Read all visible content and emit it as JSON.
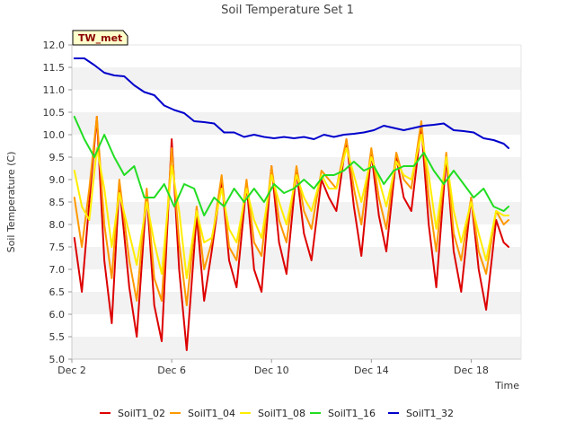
{
  "chart_data": {
    "type": "line",
    "title": "Soil Temperature Set 1",
    "xlabel": "Time",
    "ylabel": "Soil Temperature (C)",
    "station_badge": "TW_met",
    "xlim": [
      "2023-12-02",
      "2023-12-20"
    ],
    "ylim": [
      5.0,
      12.0
    ],
    "y_ticks": [
      "5.0",
      "5.5",
      "6.0",
      "6.5",
      "7.0",
      "7.5",
      "8.0",
      "8.5",
      "9.0",
      "9.5",
      "10.0",
      "10.5",
      "11.0",
      "11.5",
      "12.0"
    ],
    "x_ticks": [
      "Dec 2",
      "Dec 6",
      "Dec 10",
      "Dec 14",
      "Dec 18"
    ],
    "grid": "horizontal bands",
    "legend_position": "bottom",
    "series": [
      {
        "name": "SoilT1_02",
        "color": "#dd0000",
        "x": [
          2.1,
          2.4,
          2.7,
          3.0,
          3.3,
          3.6,
          3.9,
          4.3,
          4.6,
          5.0,
          5.3,
          5.6,
          6.0,
          6.3,
          6.6,
          7.0,
          7.3,
          7.6,
          8.0,
          8.3,
          8.6,
          9.0,
          9.3,
          9.6,
          10.0,
          10.3,
          10.6,
          11.0,
          11.3,
          11.6,
          12.0,
          12.3,
          12.6,
          13.0,
          13.3,
          13.6,
          14.0,
          14.3,
          14.6,
          15.0,
          15.3,
          15.6,
          16.0,
          16.3,
          16.6,
          17.0,
          17.3,
          17.6,
          18.0,
          18.3,
          18.6,
          19.0,
          19.3,
          19.5
        ],
        "values": [
          7.7,
          6.5,
          8.5,
          10.4,
          7.2,
          5.8,
          8.9,
          6.6,
          5.5,
          8.7,
          6.2,
          5.4,
          9.9,
          7.0,
          5.2,
          8.2,
          6.3,
          7.4,
          9.0,
          7.2,
          6.6,
          8.9,
          7.0,
          6.5,
          9.3,
          7.6,
          6.9,
          9.2,
          7.8,
          7.2,
          9.0,
          8.6,
          8.3,
          9.9,
          8.4,
          7.3,
          9.6,
          8.2,
          7.4,
          9.5,
          8.6,
          8.3,
          10.2,
          8.0,
          6.6,
          9.5,
          7.4,
          6.5,
          8.6,
          7.0,
          6.1,
          8.1,
          7.6,
          7.5
        ]
      },
      {
        "name": "SoilT1_04",
        "color": "#ff9900",
        "x": [
          2.1,
          2.4,
          2.7,
          3.0,
          3.3,
          3.6,
          3.9,
          4.3,
          4.6,
          5.0,
          5.3,
          5.6,
          6.0,
          6.3,
          6.6,
          7.0,
          7.3,
          7.6,
          8.0,
          8.3,
          8.6,
          9.0,
          9.3,
          9.6,
          10.0,
          10.3,
          10.6,
          11.0,
          11.3,
          11.6,
          12.0,
          12.3,
          12.6,
          13.0,
          13.3,
          13.6,
          14.0,
          14.3,
          14.6,
          15.0,
          15.3,
          15.6,
          16.0,
          16.3,
          16.6,
          17.0,
          17.3,
          17.6,
          18.0,
          18.3,
          18.6,
          19.0,
          19.3,
          19.5
        ],
        "values": [
          8.6,
          7.5,
          8.8,
          10.4,
          8.0,
          6.8,
          9.0,
          7.2,
          6.3,
          8.8,
          6.8,
          6.3,
          9.7,
          7.6,
          6.2,
          8.4,
          7.0,
          7.6,
          9.1,
          7.5,
          7.2,
          9.0,
          7.6,
          7.3,
          9.3,
          8.1,
          7.6,
          9.3,
          8.3,
          7.9,
          9.2,
          9.0,
          8.8,
          9.9,
          8.8,
          8.0,
          9.7,
          8.6,
          7.9,
          9.6,
          9.0,
          8.8,
          10.3,
          8.6,
          7.4,
          9.6,
          7.8,
          7.2,
          8.6,
          7.4,
          6.9,
          8.3,
          8.0,
          8.1
        ]
      },
      {
        "name": "SoilT1_08",
        "color": "#ffee00",
        "x": [
          2.1,
          2.4,
          2.7,
          3.0,
          3.3,
          3.6,
          3.9,
          4.3,
          4.6,
          5.0,
          5.3,
          5.6,
          6.0,
          6.3,
          6.6,
          7.0,
          7.3,
          7.6,
          8.0,
          8.3,
          8.6,
          9.0,
          9.3,
          9.6,
          10.0,
          10.3,
          10.6,
          11.0,
          11.3,
          11.6,
          12.0,
          12.3,
          12.6,
          13.0,
          13.3,
          13.6,
          14.0,
          14.3,
          14.6,
          15.0,
          15.3,
          15.6,
          16.0,
          16.3,
          16.6,
          17.0,
          17.3,
          17.6,
          18.0,
          18.3,
          18.6,
          19.0,
          19.3,
          19.5
        ],
        "values": [
          9.2,
          8.4,
          8.1,
          9.7,
          8.8,
          7.5,
          8.7,
          7.8,
          7.1,
          8.5,
          7.6,
          6.9,
          9.3,
          8.3,
          6.8,
          8.3,
          7.6,
          7.7,
          8.8,
          7.9,
          7.6,
          8.8,
          8.1,
          7.7,
          9.1,
          8.5,
          8.0,
          9.1,
          8.6,
          8.3,
          9.1,
          8.8,
          8.8,
          9.7,
          9.1,
          8.5,
          9.5,
          9.0,
          8.4,
          9.4,
          9.1,
          9.0,
          10.0,
          9.1,
          7.9,
          9.5,
          8.3,
          7.6,
          8.5,
          7.8,
          7.2,
          8.3,
          8.2,
          8.2
        ]
      },
      {
        "name": "SoilT1_16",
        "color": "#22dd22",
        "x": [
          2.1,
          2.5,
          2.9,
          3.3,
          3.7,
          4.1,
          4.5,
          4.9,
          5.3,
          5.7,
          6.1,
          6.5,
          6.9,
          7.3,
          7.7,
          8.1,
          8.5,
          8.9,
          9.3,
          9.7,
          10.1,
          10.5,
          10.9,
          11.3,
          11.7,
          12.1,
          12.5,
          12.9,
          13.3,
          13.7,
          14.1,
          14.5,
          14.9,
          15.3,
          15.7,
          16.1,
          16.5,
          16.9,
          17.3,
          17.7,
          18.1,
          18.5,
          18.9,
          19.3,
          19.5
        ],
        "values": [
          10.4,
          9.9,
          9.5,
          10.0,
          9.5,
          9.1,
          9.3,
          8.6,
          8.6,
          8.9,
          8.4,
          8.9,
          8.8,
          8.2,
          8.6,
          8.4,
          8.8,
          8.5,
          8.8,
          8.5,
          8.9,
          8.7,
          8.8,
          9.0,
          8.8,
          9.1,
          9.1,
          9.2,
          9.4,
          9.2,
          9.3,
          8.9,
          9.2,
          9.3,
          9.3,
          9.6,
          9.2,
          8.9,
          9.2,
          8.9,
          8.6,
          8.8,
          8.4,
          8.3,
          8.4
        ]
      },
      {
        "name": "SoilT1_32",
        "color": "#0000cc",
        "x": [
          2.1,
          2.5,
          2.9,
          3.3,
          3.7,
          4.1,
          4.5,
          4.9,
          5.3,
          5.7,
          6.1,
          6.5,
          6.9,
          7.3,
          7.7,
          8.1,
          8.5,
          8.9,
          9.3,
          9.7,
          10.1,
          10.5,
          10.9,
          11.3,
          11.7,
          12.1,
          12.5,
          12.9,
          13.3,
          13.7,
          14.1,
          14.5,
          14.9,
          15.3,
          15.7,
          16.1,
          16.5,
          16.9,
          17.3,
          17.7,
          18.1,
          18.5,
          18.9,
          19.3,
          19.5
        ],
        "values": [
          11.7,
          11.7,
          11.55,
          11.38,
          11.32,
          11.3,
          11.1,
          10.95,
          10.88,
          10.65,
          10.55,
          10.48,
          10.3,
          10.28,
          10.25,
          10.05,
          10.05,
          9.95,
          10.0,
          9.95,
          9.92,
          9.95,
          9.92,
          9.95,
          9.9,
          10.0,
          9.95,
          10.0,
          10.02,
          10.05,
          10.1,
          10.2,
          10.15,
          10.1,
          10.15,
          10.2,
          10.22,
          10.25,
          10.1,
          10.08,
          10.05,
          9.92,
          9.88,
          9.8,
          9.7
        ]
      }
    ]
  }
}
